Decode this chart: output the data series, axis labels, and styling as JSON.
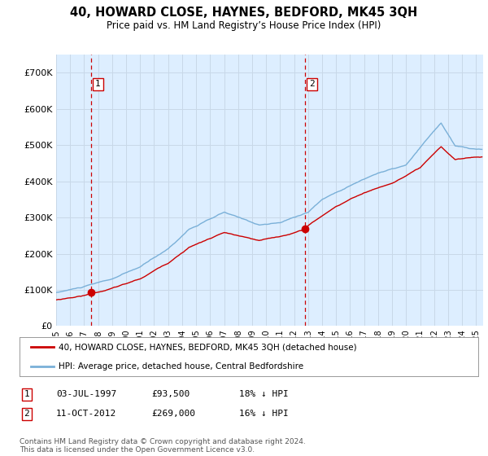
{
  "title": "40, HOWARD CLOSE, HAYNES, BEDFORD, MK45 3QH",
  "subtitle": "Price paid vs. HM Land Registry’s House Price Index (HPI)",
  "plot_bg_color": "#ddeeff",
  "ylim": [
    0,
    750000
  ],
  "yticks": [
    0,
    100000,
    200000,
    300000,
    400000,
    500000,
    600000,
    700000
  ],
  "ytick_labels": [
    "£0",
    "£100K",
    "£200K",
    "£300K",
    "£400K",
    "£500K",
    "£600K",
    "£700K"
  ],
  "hpi_color": "#7ab0d8",
  "property_color": "#cc0000",
  "grid_color": "#c8d8e8",
  "marker1_date": 1997.5,
  "marker1_price": 93500,
  "marker1_label": "1",
  "marker2_date": 2012.78,
  "marker2_price": 269000,
  "marker2_label": "2",
  "legend_property": "40, HOWARD CLOSE, HAYNES, BEDFORD, MK45 3QH (detached house)",
  "legend_hpi": "HPI: Average price, detached house, Central Bedfordshire",
  "table_rows": [
    [
      "1",
      "03-JUL-1997",
      "£93,500",
      "18% ↓ HPI"
    ],
    [
      "2",
      "11-OCT-2012",
      "£269,000",
      "16% ↓ HPI"
    ]
  ],
  "footer": "Contains HM Land Registry data © Crown copyright and database right 2024.\nThis data is licensed under the Open Government Licence v3.0.",
  "xmin": 1995,
  "xmax": 2025.5,
  "xticks": [
    1995,
    1996,
    1997,
    1998,
    1999,
    2000,
    2001,
    2002,
    2003,
    2004,
    2005,
    2006,
    2007,
    2008,
    2009,
    2010,
    2011,
    2012,
    2013,
    2014,
    2015,
    2016,
    2017,
    2018,
    2019,
    2020,
    2021,
    2022,
    2023,
    2024,
    2025
  ]
}
